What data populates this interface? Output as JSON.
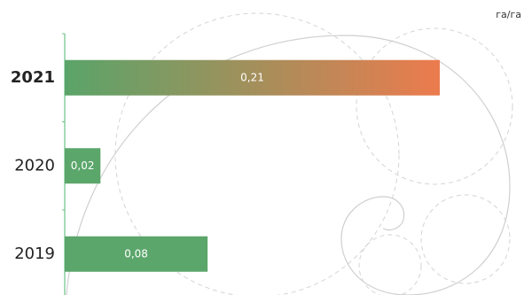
{
  "chart_data": {
    "type": "bar",
    "orientation": "horizontal",
    "unit": "га/га",
    "categories": [
      "2021",
      "2020",
      "2019"
    ],
    "values": [
      0.21,
      0.02,
      0.08
    ],
    "value_labels": [
      "0,21",
      "0,02",
      "0,08"
    ],
    "color": "#5ba66b",
    "highlight": {
      "index": 0,
      "colors": [
        "#5aa469",
        "#ec7b4e"
      ]
    },
    "axis_color": "#6cc28a"
  }
}
